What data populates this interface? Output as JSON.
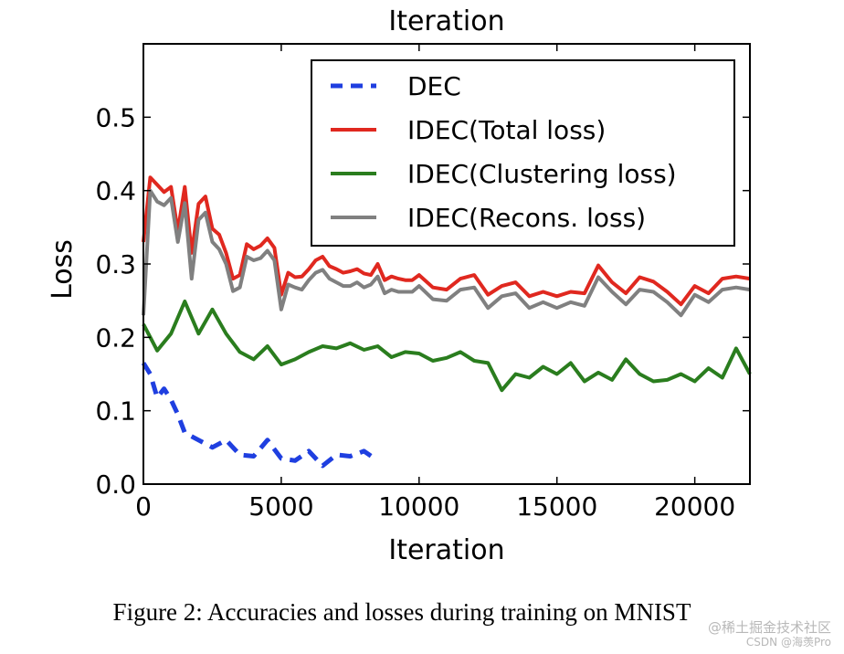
{
  "chart_data": {
    "type": "line",
    "title": "Iteration",
    "xlabel": "Iteration",
    "ylabel": "Loss",
    "xlim": [
      0,
      22000
    ],
    "ylim": [
      0,
      0.6
    ],
    "xticks": [
      0,
      5000,
      10000,
      15000,
      20000
    ],
    "xtick_labels": [
      "0",
      "5000",
      "10000",
      "15000",
      "20000"
    ],
    "yticks": [
      0.0,
      0.1,
      0.2,
      0.3,
      0.4,
      0.5
    ],
    "ytick_labels": [
      "0.0",
      "0.1",
      "0.2",
      "0.3",
      "0.4",
      "0.5"
    ],
    "legend_position": "top-right",
    "grid": false,
    "series": [
      {
        "name": "DEC",
        "color": "#1f3fe0",
        "style": "dashed",
        "x": [
          0,
          250,
          500,
          750,
          1000,
          1250,
          1500,
          2000,
          2500,
          3000,
          3500,
          4000,
          4500,
          5000,
          5500,
          6000,
          6500,
          7000,
          7500,
          8000,
          8500
        ],
        "y": [
          0.165,
          0.15,
          0.118,
          0.13,
          0.115,
          0.095,
          0.07,
          0.06,
          0.05,
          0.06,
          0.04,
          0.038,
          0.06,
          0.035,
          0.032,
          0.045,
          0.025,
          0.04,
          0.038,
          0.045,
          0.032
        ]
      },
      {
        "name": "IDEC(Total loss)",
        "color": "#e0281f",
        "style": "solid",
        "x": [
          0,
          250,
          500,
          750,
          1000,
          1250,
          1500,
          1750,
          2000,
          2250,
          2500,
          2750,
          3000,
          3250,
          3500,
          3750,
          4000,
          4250,
          4500,
          4750,
          5000,
          5250,
          5500,
          5750,
          6000,
          6250,
          6500,
          6750,
          7000,
          7250,
          7500,
          7750,
          8000,
          8250,
          8500,
          8750,
          9000,
          9250,
          9500,
          9750,
          10000,
          10500,
          11000,
          11500,
          12000,
          12500,
          13000,
          13500,
          14000,
          14500,
          15000,
          15500,
          16000,
          16500,
          17000,
          17500,
          18000,
          18500,
          19000,
          19500,
          20000,
          20500,
          21000,
          21500,
          22000
        ],
        "y": [
          0.33,
          0.418,
          0.408,
          0.398,
          0.405,
          0.345,
          0.405,
          0.315,
          0.382,
          0.392,
          0.348,
          0.34,
          0.315,
          0.28,
          0.285,
          0.327,
          0.32,
          0.325,
          0.335,
          0.322,
          0.258,
          0.288,
          0.282,
          0.283,
          0.293,
          0.305,
          0.31,
          0.297,
          0.293,
          0.288,
          0.29,
          0.293,
          0.287,
          0.285,
          0.3,
          0.278,
          0.283,
          0.28,
          0.278,
          0.278,
          0.285,
          0.268,
          0.265,
          0.28,
          0.285,
          0.258,
          0.27,
          0.275,
          0.256,
          0.262,
          0.256,
          0.262,
          0.26,
          0.298,
          0.275,
          0.26,
          0.282,
          0.276,
          0.262,
          0.245,
          0.27,
          0.26,
          0.28,
          0.283,
          0.28
        ]
      },
      {
        "name": "IDEC(Clustering loss)",
        "color": "#2a7d1e",
        "style": "solid",
        "x": [
          0,
          500,
          1000,
          1500,
          2000,
          2500,
          3000,
          3500,
          4000,
          4500,
          5000,
          5500,
          6000,
          6500,
          7000,
          7500,
          8000,
          8500,
          9000,
          9500,
          10000,
          10500,
          11000,
          11500,
          12000,
          12500,
          13000,
          13500,
          14000,
          14500,
          15000,
          15500,
          16000,
          16500,
          17000,
          17500,
          18000,
          18500,
          19000,
          19500,
          20000,
          20500,
          21000,
          21500,
          22000
        ],
        "y": [
          0.218,
          0.182,
          0.205,
          0.249,
          0.205,
          0.238,
          0.205,
          0.18,
          0.17,
          0.188,
          0.163,
          0.17,
          0.18,
          0.188,
          0.185,
          0.192,
          0.183,
          0.188,
          0.173,
          0.18,
          0.178,
          0.168,
          0.172,
          0.18,
          0.168,
          0.165,
          0.128,
          0.15,
          0.145,
          0.16,
          0.15,
          0.165,
          0.14,
          0.152,
          0.142,
          0.17,
          0.15,
          0.14,
          0.142,
          0.15,
          0.14,
          0.158,
          0.145,
          0.185,
          0.15
        ]
      },
      {
        "name": "IDEC(Recons. loss)",
        "color": "#808080",
        "style": "solid",
        "x": [
          0,
          250,
          500,
          750,
          1000,
          1250,
          1500,
          1750,
          2000,
          2250,
          2500,
          2750,
          3000,
          3250,
          3500,
          3750,
          4000,
          4250,
          4500,
          4750,
          5000,
          5250,
          5500,
          5750,
          6000,
          6250,
          6500,
          6750,
          7000,
          7250,
          7500,
          7750,
          8000,
          8250,
          8500,
          8750,
          9000,
          9250,
          9500,
          9750,
          10000,
          10500,
          11000,
          11500,
          12000,
          12500,
          13000,
          13500,
          14000,
          14500,
          15000,
          15500,
          16000,
          16500,
          17000,
          17500,
          18000,
          18500,
          19000,
          19500,
          20000,
          20500,
          21000,
          21500,
          22000
        ],
        "y": [
          0.23,
          0.4,
          0.385,
          0.38,
          0.39,
          0.33,
          0.383,
          0.28,
          0.36,
          0.37,
          0.33,
          0.32,
          0.3,
          0.263,
          0.268,
          0.31,
          0.305,
          0.308,
          0.318,
          0.305,
          0.238,
          0.272,
          0.268,
          0.265,
          0.278,
          0.288,
          0.292,
          0.28,
          0.275,
          0.27,
          0.27,
          0.275,
          0.268,
          0.272,
          0.283,
          0.26,
          0.265,
          0.262,
          0.262,
          0.262,
          0.27,
          0.252,
          0.25,
          0.265,
          0.268,
          0.24,
          0.256,
          0.26,
          0.24,
          0.248,
          0.24,
          0.248,
          0.243,
          0.282,
          0.262,
          0.245,
          0.265,
          0.262,
          0.248,
          0.23,
          0.258,
          0.248,
          0.265,
          0.268,
          0.265
        ]
      }
    ]
  },
  "caption": "Figure 2: Accuracies and losses during training on MNIST",
  "watermark": {
    "line1": "@稀土掘金技术社区",
    "line2": "CSDN @海羡Pro"
  }
}
